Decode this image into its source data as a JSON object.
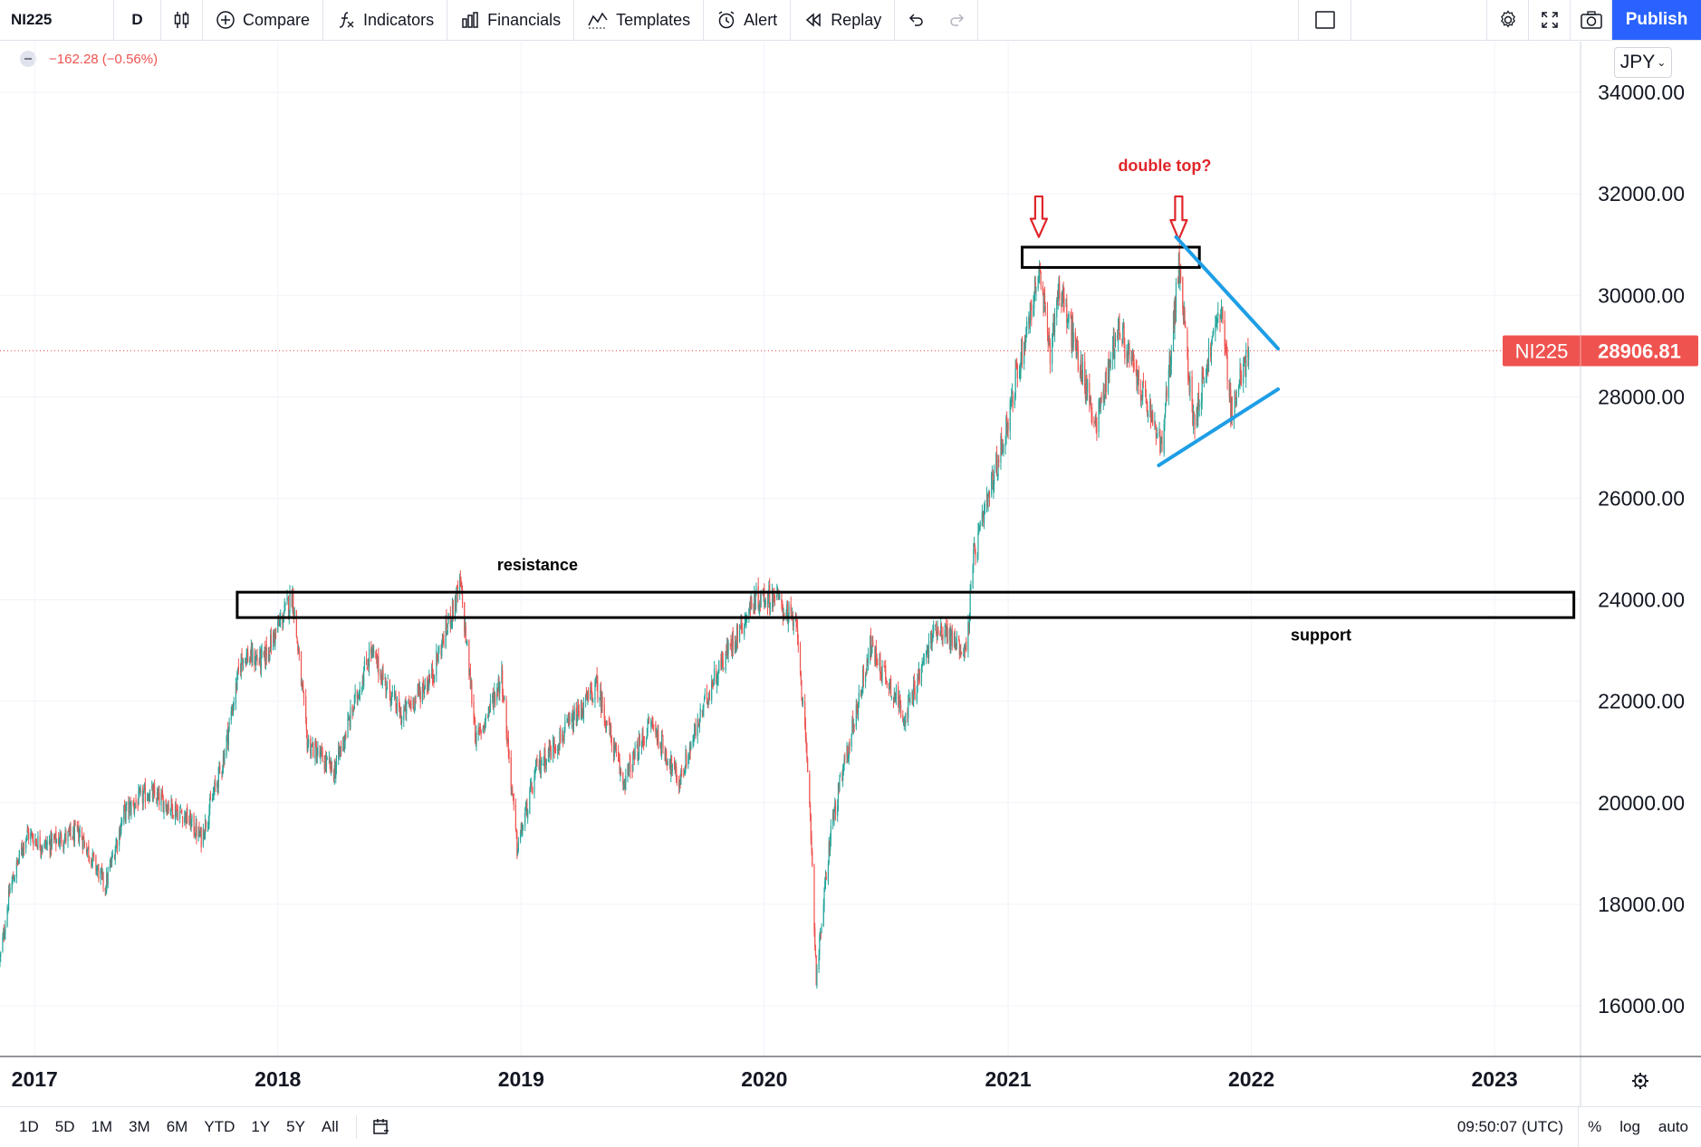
{
  "toolbar": {
    "symbol": "NI225",
    "interval": "D",
    "compare_label": "Compare",
    "indicators_label": "Indicators",
    "financials_label": "Financials",
    "templates_label": "Templates",
    "alert_label": "Alert",
    "replay_label": "Replay",
    "publish_label": "Publish"
  },
  "legend": {
    "change": "−162.28 (−0.56%)"
  },
  "price_scale": {
    "currency": "JPY"
  },
  "bottom_bar": {
    "ranges": [
      "1D",
      "5D",
      "1M",
      "3M",
      "6M",
      "YTD",
      "1Y",
      "5Y",
      "All"
    ],
    "clock": "09:50:07 (UTC)",
    "percent_label": "%",
    "log_label": "log",
    "auto_label": "auto"
  },
  "colors": {
    "up": "#26a69a",
    "down": "#ef5350",
    "trendline": "#1e9ee5",
    "arrow": "#e0252a",
    "annotation_red": "#e0252a",
    "price_label_bg": "#ef5350"
  },
  "chart_data": {
    "type": "candlestick",
    "symbol": "NI225",
    "price_label": "NI225",
    "last_price": 28906.81,
    "last_price_text": "28906.81",
    "x_axis": {
      "type": "date",
      "range": [
        "2016-11-10",
        "2023-05-10"
      ],
      "tick_labels": [
        "2017",
        "2018",
        "2019",
        "2020",
        "2021",
        "2022",
        "2023"
      ],
      "tick_dates": [
        "2017-01-01",
        "2018-01-01",
        "2019-01-01",
        "2020-01-01",
        "2021-01-01",
        "2022-01-01",
        "2023-01-01"
      ]
    },
    "y_axis": {
      "range": [
        15000,
        35000
      ],
      "ticks": [
        16000,
        18000,
        20000,
        22000,
        24000,
        26000,
        28000,
        30000,
        32000,
        34000
      ],
      "tick_labels": [
        "16000.00",
        "18000.00",
        "20000.00",
        "22000.00",
        "24000.00",
        "26000.00",
        "28000.00",
        "30000.00",
        "32000.00",
        "34000.00"
      ]
    },
    "grid": true,
    "series": [
      {
        "name": "NI225",
        "points": [
          [
            "2016-11-10",
            16900
          ],
          [
            "2016-11-25",
            18300
          ],
          [
            "2016-12-20",
            19400
          ],
          [
            "2017-01-15",
            19150
          ],
          [
            "2017-02-10",
            19300
          ],
          [
            "2017-03-10",
            19400
          ],
          [
            "2017-04-17",
            18350
          ],
          [
            "2017-05-15",
            19800
          ],
          [
            "2017-06-20",
            20200
          ],
          [
            "2017-08-15",
            19750
          ],
          [
            "2017-09-08",
            19300
          ],
          [
            "2017-10-10",
            20800
          ],
          [
            "2017-11-08",
            22900
          ],
          [
            "2017-12-10",
            22800
          ],
          [
            "2018-01-23",
            24100
          ],
          [
            "2018-02-14",
            21200
          ],
          [
            "2018-03-26",
            20600
          ],
          [
            "2018-05-20",
            23000
          ],
          [
            "2018-07-05",
            21700
          ],
          [
            "2018-08-20",
            22500
          ],
          [
            "2018-10-02",
            24300
          ],
          [
            "2018-10-26",
            21200
          ],
          [
            "2018-12-03",
            22500
          ],
          [
            "2018-12-26",
            19100
          ],
          [
            "2019-01-25",
            20700
          ],
          [
            "2019-03-20",
            21600
          ],
          [
            "2019-04-25",
            22300
          ],
          [
            "2019-06-03",
            20400
          ],
          [
            "2019-07-15",
            21600
          ],
          [
            "2019-08-26",
            20400
          ],
          [
            "2019-10-15",
            22400
          ],
          [
            "2019-12-17",
            24000
          ],
          [
            "2020-01-17",
            24100
          ],
          [
            "2020-02-20",
            23400
          ],
          [
            "2020-03-10",
            19800
          ],
          [
            "2020-03-19",
            16550
          ],
          [
            "2020-04-10",
            19500
          ],
          [
            "2020-06-08",
            23100
          ],
          [
            "2020-07-31",
            21700
          ],
          [
            "2020-09-15",
            23500
          ],
          [
            "2020-10-30",
            22980
          ],
          [
            "2020-11-10",
            24800
          ],
          [
            "2020-12-30",
            27450
          ],
          [
            "2021-01-15",
            28500
          ],
          [
            "2021-02-16",
            30450
          ],
          [
            "2021-03-05",
            28900
          ],
          [
            "2021-03-18",
            30200
          ],
          [
            "2021-05-13",
            27450
          ],
          [
            "2021-06-15",
            29400
          ],
          [
            "2021-08-20",
            27000
          ],
          [
            "2021-09-14",
            30600
          ],
          [
            "2021-10-06",
            27500
          ],
          [
            "2021-11-16",
            29800
          ],
          [
            "2021-12-02",
            27700
          ],
          [
            "2021-12-28",
            28906.81
          ]
        ]
      }
    ],
    "annotations": [
      {
        "type": "box",
        "label": "resistance",
        "label_side": "above-left",
        "from": "2017-11-01",
        "to": "2023-04-30",
        "y_low": 23650,
        "y_high": 24150
      },
      {
        "type": "text",
        "text": "support",
        "date": "2022-03-01",
        "price": 23200
      },
      {
        "type": "box",
        "from": "2021-01-22",
        "to": "2021-10-15",
        "y_low": 30550,
        "y_high": 30950
      },
      {
        "type": "text",
        "text": "double top?",
        "date": "2021-06-15",
        "price": 32450,
        "color": "#e0252a"
      },
      {
        "type": "arrow",
        "direction": "down",
        "date": "2021-02-16",
        "from_price": 31950,
        "to_price": 31150
      },
      {
        "type": "arrow",
        "direction": "down",
        "date": "2021-09-14",
        "from_price": 31950,
        "to_price": 31100
      },
      {
        "type": "trendline",
        "from": [
          "2021-09-10",
          31150
        ],
        "to": [
          "2022-02-10",
          28950
        ]
      },
      {
        "type": "trendline",
        "from": [
          "2021-08-15",
          26650
        ],
        "to": [
          "2022-02-10",
          28150
        ]
      }
    ]
  }
}
